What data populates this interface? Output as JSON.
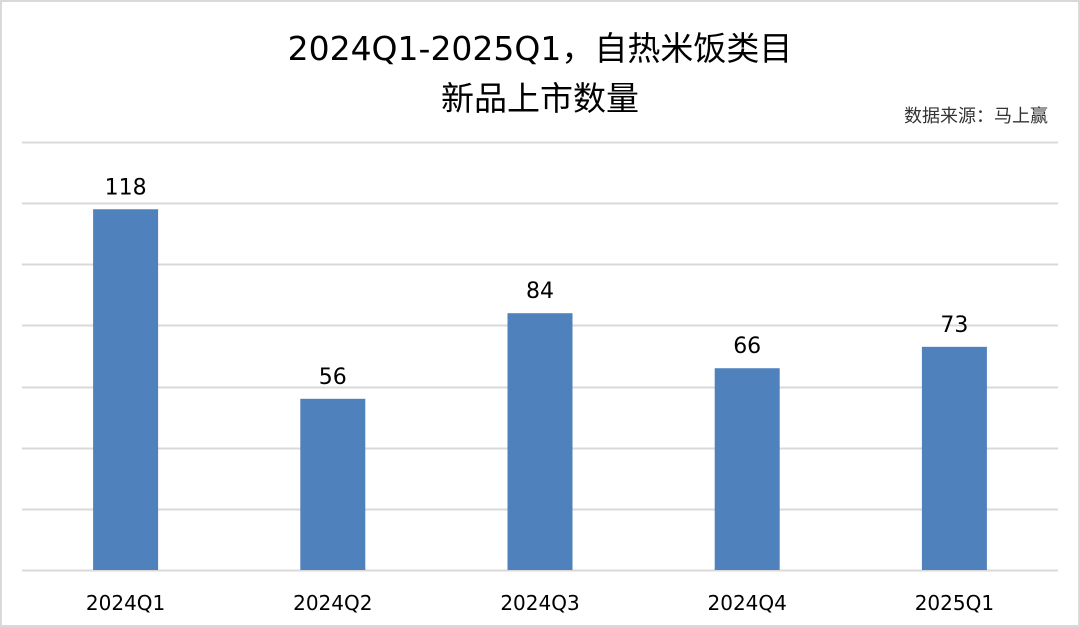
{
  "chart_data": {
    "type": "bar",
    "title_lines": [
      "2024Q1-2025Q1，自热米饭类目",
      "新品上市数量"
    ],
    "source": "数据来源：马上赢",
    "categories": [
      "2024Q1",
      "2024Q2",
      "2024Q3",
      "2024Q4",
      "2025Q1"
    ],
    "values": [
      118,
      56,
      84,
      66,
      73
    ],
    "xlabel": "",
    "ylabel": "",
    "ylim": [
      0,
      140
    ],
    "grid_step": 20,
    "grid": true,
    "y_tick_labels_shown": false,
    "data_labels": true,
    "bar_color": "#4f81bd",
    "grid_color": "#d9d9d9"
  }
}
